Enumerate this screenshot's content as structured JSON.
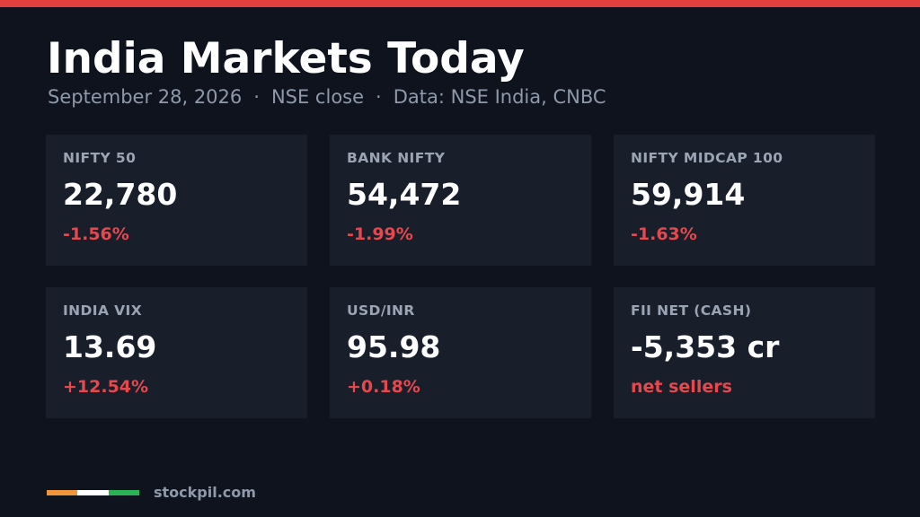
{
  "header": {
    "title": "India Markets Today",
    "date": "September 28, 2026",
    "session": "NSE close",
    "source": "Data: NSE India, CNBC",
    "separator": "·"
  },
  "cards": [
    {
      "label": "NIFTY 50",
      "value": "22,780",
      "change": "-1.56%"
    },
    {
      "label": "BANK NIFTY",
      "value": "54,472",
      "change": "-1.99%"
    },
    {
      "label": "NIFTY MIDCAP 100",
      "value": "59,914",
      "change": "-1.63%"
    },
    {
      "label": "INDIA VIX",
      "value": "13.69",
      "change": "+12.54%"
    },
    {
      "label": "USD/INR",
      "value": "95.98",
      "change": "+0.18%"
    },
    {
      "label": "FII NET (CASH)",
      "value": "-5,353 cr",
      "change": "net sellers"
    }
  ],
  "colors": {
    "accent_bar": "#e2403e",
    "change_text": "#e5484d",
    "background": "#0e131d",
    "card_background": "#181f2b",
    "flag": [
      "#f0953a",
      "#ffffff",
      "#2bb255"
    ]
  },
  "footer": {
    "brand": "stockpil.com"
  }
}
